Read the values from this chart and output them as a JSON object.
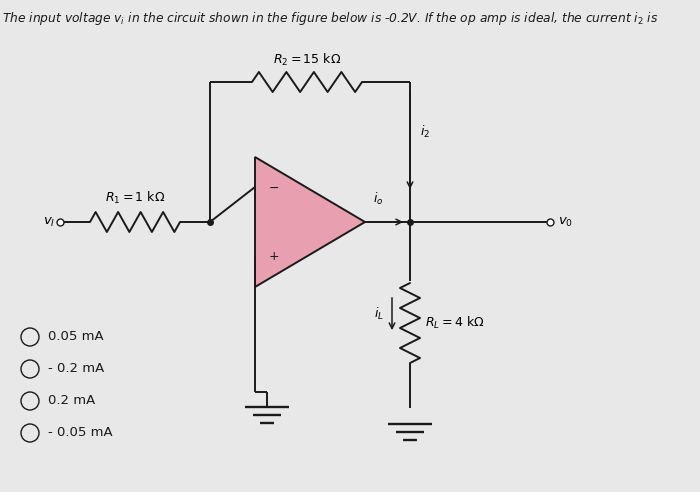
{
  "title": "The input voltage vᵢ in the circuit shown in the figure below is -0.2V. If the op amp is ideal, the current i₂ is",
  "bg_color": "#e8e8e8",
  "options": [
    "0.05 mA",
    "- 0.2 mA",
    "0.2 mA",
    "- 0.05 mA"
  ],
  "R1_label": "$R_1 = 1$ kΩ",
  "R2_label": "$R_2 = 15$ kΩ",
  "RL_label": "$R_L = 4$ kΩ",
  "vi_label": "$v_I$",
  "vo_label": "$v_0$",
  "i2_label": "$i_2$",
  "io_label": "$i_o$",
  "iL_label": "$i_L$",
  "opamp_fill": "#e8a0b0",
  "line_color": "#1a1a1a",
  "text_color": "#1a1a1a",
  "title_plain": "The input voltage v_i in the circuit shown in the figure below is -0.2V. If the op amp is ideal, the current i_2 is"
}
